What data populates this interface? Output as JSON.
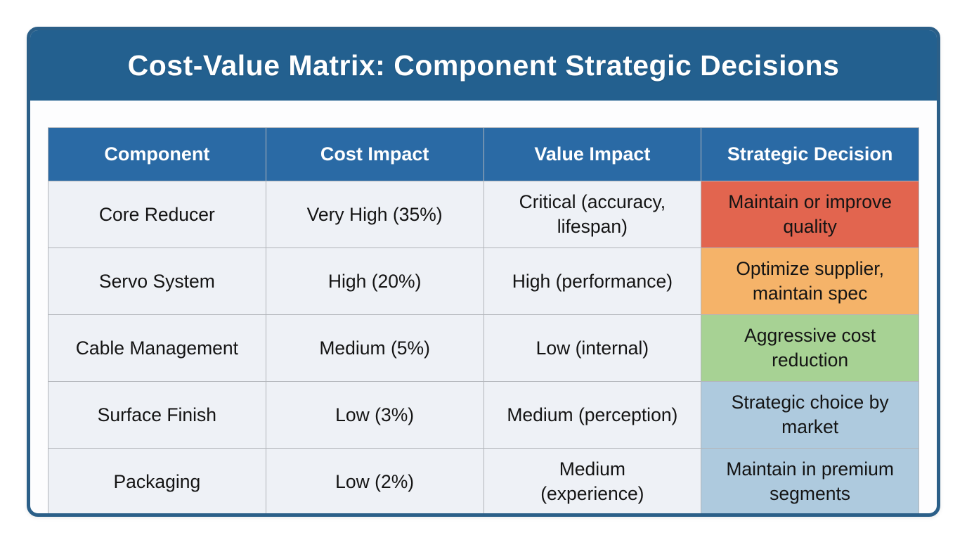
{
  "title": "Cost-Value Matrix: Component Strategic Decisions",
  "colors": {
    "title_bar_bg": "#23608f",
    "card_border": "#2b5f88",
    "table_header_bg": "#2a6aa5",
    "body_cell_bg": "#eef1f6",
    "cell_border": "#b2b5ba",
    "decision_red": "#e2654f",
    "decision_orange": "#f5b369",
    "decision_green": "#a7d294",
    "decision_blue": "#aecade"
  },
  "table": {
    "headers": [
      "Component",
      "Cost Impact",
      "Value Impact",
      "Strategic Decision"
    ],
    "rows": [
      {
        "component": "Core Reducer",
        "cost_impact": "Very High (35%)",
        "value_impact": "Critical (accuracy, lifespan)",
        "decision": "Maintain or improve quality",
        "decision_color": "#e2654f"
      },
      {
        "component": "Servo System",
        "cost_impact": "High (20%)",
        "value_impact": "High (performance)",
        "decision": "Optimize supplier, maintain spec",
        "decision_color": "#f5b369"
      },
      {
        "component": "Cable Management",
        "cost_impact": "Medium (5%)",
        "value_impact": "Low (internal)",
        "decision": "Aggressive cost reduction",
        "decision_color": "#a7d294"
      },
      {
        "component": "Surface Finish",
        "cost_impact": "Low (3%)",
        "value_impact": "Medium (perception)",
        "decision": "Strategic choice by market",
        "decision_color": "#aecade"
      },
      {
        "component": "Packaging",
        "cost_impact": "Low (2%)",
        "value_impact": "Medium (experience)",
        "decision": "Maintain in premium segments",
        "decision_color": "#aecade"
      }
    ]
  },
  "chart_data": {
    "type": "table",
    "title": "Cost-Value Matrix: Component Strategic Decisions",
    "columns": [
      "Component",
      "Cost Impact",
      "Value Impact",
      "Strategic Decision"
    ],
    "rows": [
      [
        "Core Reducer",
        "Very High (35%)",
        "Critical (accuracy, lifespan)",
        "Maintain or improve quality"
      ],
      [
        "Servo System",
        "High (20%)",
        "High (performance)",
        "Optimize supplier, maintain spec"
      ],
      [
        "Cable Management",
        "Medium (5%)",
        "Low (internal)",
        "Aggressive cost reduction"
      ],
      [
        "Surface Finish",
        "Low (3%)",
        "Medium (perception)",
        "Strategic choice by market"
      ],
      [
        "Packaging",
        "Low (2%)",
        "Medium (experience)",
        "Maintain in premium segments"
      ]
    ],
    "cost_impact_percent": {
      "Core Reducer": 35,
      "Servo System": 20,
      "Cable Management": 5,
      "Surface Finish": 3,
      "Packaging": 2
    },
    "decision_cell_colors": [
      "#e2654f",
      "#f5b369",
      "#a7d294",
      "#aecade",
      "#aecade"
    ],
    "layout_hints": {
      "header_bg": "#2a6aa5",
      "body_bg": "#eef1f6",
      "grid": true
    }
  }
}
